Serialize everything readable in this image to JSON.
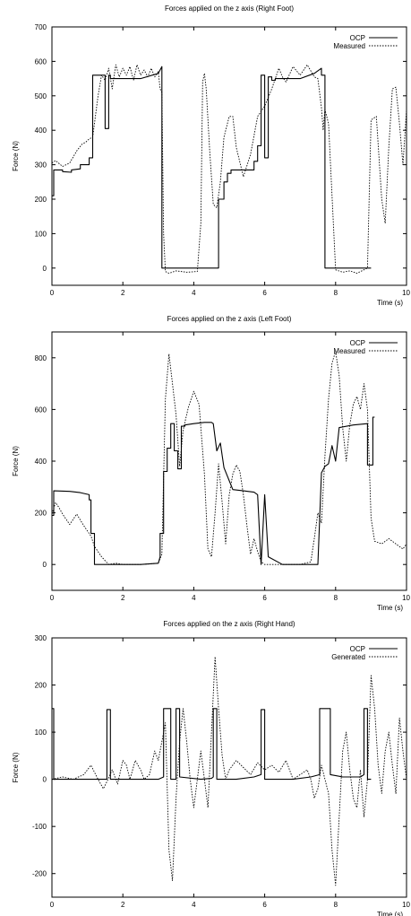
{
  "chart_data": [
    {
      "type": "line",
      "title": "Forces applied on the z axis (Right Foot)",
      "xlabel": "Time (s)",
      "ylabel": "Force (N)",
      "xlim": [
        0,
        10
      ],
      "ylim": [
        -50,
        700
      ],
      "xticks": [
        0,
        2,
        4,
        6,
        8,
        10
      ],
      "yticks": [
        0,
        100,
        200,
        300,
        400,
        500,
        600,
        700
      ],
      "legend_position": "top-right",
      "series": [
        {
          "name": "OCP",
          "style": "solid",
          "x": [
            0.0,
            0.05,
            0.05,
            0.3,
            0.3,
            0.55,
            0.55,
            0.8,
            0.8,
            1.05,
            1.05,
            1.15,
            1.15,
            1.5,
            1.5,
            1.6,
            1.6,
            1.65,
            1.65,
            2.5,
            3.0,
            3.1,
            3.1,
            3.25,
            3.25,
            3.5,
            3.7,
            4.7,
            4.7,
            4.85,
            4.85,
            4.95,
            4.95,
            5.05,
            5.05,
            5.7,
            5.7,
            5.8,
            5.8,
            5.9,
            5.9,
            6.0,
            6.0,
            6.1,
            6.1,
            6.2,
            6.2,
            6.3,
            6.3,
            7.0,
            7.4,
            7.6,
            7.6,
            7.7,
            7.7,
            8.0,
            8.5,
            8.7,
            8.7,
            9.0
          ],
          "y": [
            210,
            210,
            285,
            285,
            280,
            278,
            285,
            288,
            300,
            300,
            320,
            320,
            560,
            560,
            405,
            405,
            560,
            560,
            550,
            550,
            565,
            585,
            0,
            0,
            0,
            0,
            0,
            0,
            200,
            200,
            250,
            250,
            275,
            275,
            285,
            285,
            310,
            310,
            355,
            355,
            560,
            560,
            320,
            320,
            555,
            555,
            545,
            545,
            550,
            550,
            565,
            580,
            560,
            560,
            0,
            0,
            0,
            0,
            0,
            0
          ]
        },
        {
          "name": "Measured",
          "style": "dotted",
          "x": [
            0.0,
            0.1,
            0.3,
            0.5,
            0.7,
            0.85,
            0.95,
            1.05,
            1.15,
            1.3,
            1.4,
            1.5,
            1.6,
            1.7,
            1.8,
            1.9,
            2.0,
            2.1,
            2.2,
            2.3,
            2.4,
            2.5,
            2.6,
            2.7,
            2.8,
            2.9,
            3.0,
            3.05,
            3.1,
            3.15,
            3.2,
            3.3,
            3.5,
            3.8,
            4.1,
            4.2,
            4.25,
            4.3,
            4.35,
            4.45,
            4.55,
            4.65,
            4.75,
            4.85,
            5.0,
            5.1,
            5.2,
            5.4,
            5.6,
            5.8,
            6.0,
            6.2,
            6.4,
            6.5,
            6.6,
            6.8,
            7.0,
            7.2,
            7.4,
            7.5,
            7.6,
            7.65,
            7.7,
            7.8,
            8.0,
            8.2,
            8.4,
            8.6,
            8.8,
            8.9,
            9.0,
            9.15,
            9.3,
            9.4,
            9.5,
            9.6,
            9.7,
            9.8,
            9.9,
            10.0
          ],
          "y": [
            305,
            312,
            295,
            305,
            340,
            360,
            365,
            375,
            380,
            500,
            560,
            545,
            580,
            520,
            590,
            555,
            580,
            560,
            585,
            545,
            590,
            560,
            575,
            555,
            580,
            555,
            570,
            520,
            510,
            100,
            -10,
            -15,
            -8,
            -12,
            -10,
            130,
            540,
            565,
            520,
            340,
            185,
            175,
            250,
            380,
            440,
            440,
            350,
            265,
            330,
            440,
            470,
            520,
            580,
            555,
            540,
            585,
            560,
            590,
            555,
            550,
            465,
            400,
            460,
            420,
            -5,
            -12,
            -8,
            -15,
            -5,
            0,
            430,
            440,
            200,
            130,
            350,
            520,
            525,
            420,
            300,
            460
          ]
        }
      ]
    },
    {
      "type": "line",
      "title": "Forces applied on the z axis (Left Foot)",
      "xlabel": "Time (s)",
      "ylabel": "Force (N)",
      "xlim": [
        0,
        10
      ],
      "ylim": [
        -100,
        900
      ],
      "xticks": [
        0,
        2,
        4,
        6,
        8,
        10
      ],
      "yticks": [
        0,
        200,
        400,
        600,
        800
      ],
      "legend_position": "top-right",
      "series": [
        {
          "name": "OCP",
          "style": "solid",
          "x": [
            0.0,
            0.05,
            0.05,
            0.5,
            0.8,
            1.05,
            1.05,
            1.1,
            1.1,
            1.2,
            1.2,
            1.5,
            1.8,
            2.5,
            3.0,
            3.05,
            3.05,
            3.15,
            3.15,
            3.25,
            3.25,
            3.35,
            3.35,
            3.45,
            3.45,
            3.55,
            3.55,
            3.65,
            3.65,
            3.75,
            3.75,
            4.0,
            4.3,
            4.5,
            4.55,
            4.55,
            4.65,
            4.65,
            4.75,
            4.75,
            4.85,
            4.85,
            5.1,
            5.1,
            5.4,
            5.7,
            5.8,
            5.8,
            5.9,
            5.9,
            6.0,
            6.0,
            6.1,
            6.1,
            6.5,
            7.0,
            7.5,
            7.5,
            7.6,
            7.6,
            7.7,
            7.7,
            7.8,
            7.8,
            7.9,
            7.9,
            8.0,
            8.0,
            8.1,
            8.1,
            8.5,
            8.9,
            8.9,
            9.05,
            9.05,
            9.1
          ],
          "y": [
            190,
            190,
            285,
            283,
            278,
            270,
            250,
            250,
            120,
            120,
            0,
            0,
            0,
            0,
            5,
            30,
            120,
            120,
            360,
            360,
            450,
            450,
            545,
            545,
            440,
            440,
            370,
            370,
            535,
            535,
            540,
            545,
            550,
            550,
            545,
            545,
            440,
            440,
            470,
            470,
            375,
            375,
            290,
            290,
            285,
            280,
            270,
            270,
            0,
            0,
            270,
            270,
            30,
            30,
            0,
            0,
            0,
            0,
            355,
            355,
            380,
            380,
            390,
            390,
            460,
            460,
            400,
            400,
            530,
            530,
            540,
            545,
            385,
            385,
            570,
            570
          ]
        },
        {
          "name": "Measured",
          "style": "dotted",
          "x": [
            0.0,
            0.1,
            0.2,
            0.3,
            0.5,
            0.7,
            0.9,
            1.1,
            1.2,
            1.4,
            1.6,
            1.8,
            2.0,
            2.5,
            3.0,
            3.1,
            3.2,
            3.3,
            3.4,
            3.5,
            3.6,
            3.7,
            3.85,
            4.0,
            4.15,
            4.3,
            4.4,
            4.5,
            4.6,
            4.7,
            4.8,
            4.9,
            5.0,
            5.1,
            5.2,
            5.3,
            5.4,
            5.5,
            5.6,
            5.7,
            5.8,
            5.9,
            6.0,
            6.2,
            6.5,
            7.0,
            7.3,
            7.4,
            7.5,
            7.6,
            7.7,
            7.8,
            7.9,
            8.0,
            8.1,
            8.2,
            8.3,
            8.4,
            8.5,
            8.6,
            8.7,
            8.8,
            8.9,
            9.0,
            9.1,
            9.3,
            9.5,
            9.7,
            9.9,
            10.0
          ],
          "y": [
            195,
            240,
            220,
            195,
            155,
            195,
            150,
            110,
            70,
            30,
            0,
            5,
            0,
            0,
            5,
            40,
            640,
            815,
            700,
            580,
            380,
            520,
            610,
            670,
            620,
            350,
            60,
            30,
            200,
            390,
            240,
            80,
            270,
            350,
            385,
            360,
            270,
            150,
            40,
            100,
            50,
            10,
            0,
            0,
            0,
            0,
            10,
            100,
            200,
            160,
            420,
            640,
            780,
            825,
            730,
            530,
            400,
            540,
            620,
            650,
            600,
            700,
            600,
            180,
            90,
            80,
            100,
            80,
            60,
            80
          ]
        }
      ]
    },
    {
      "type": "line",
      "title": "Forces applied on the z axis (Right Hand)",
      "xlabel": "Time (s)",
      "ylabel": "Force (N)",
      "xlim": [
        0,
        10
      ],
      "ylim": [
        -250,
        300
      ],
      "xticks": [
        0,
        2,
        4,
        6,
        8,
        10
      ],
      "yticks": [
        -200,
        -100,
        0,
        100,
        200,
        300
      ],
      "legend_position": "top-right",
      "series": [
        {
          "name": "OCP",
          "style": "solid",
          "x": [
            0.0,
            0.05,
            0.05,
            1.0,
            1.5,
            1.55,
            1.55,
            1.65,
            1.65,
            2.5,
            3.0,
            3.15,
            3.15,
            3.35,
            3.35,
            3.5,
            3.5,
            3.6,
            3.6,
            4.2,
            4.5,
            4.55,
            4.55,
            4.65,
            4.65,
            5.2,
            5.7,
            5.9,
            5.9,
            6.0,
            6.0,
            6.8,
            7.3,
            7.55,
            7.55,
            7.85,
            7.85,
            8.2,
            8.7,
            8.8,
            8.8,
            8.9,
            8.9,
            9.0
          ],
          "y": [
            150,
            150,
            0,
            0,
            0,
            0,
            148,
            148,
            0,
            0,
            0,
            5,
            150,
            150,
            0,
            0,
            150,
            150,
            5,
            0,
            2,
            5,
            150,
            150,
            0,
            0,
            5,
            10,
            148,
            148,
            0,
            0,
            5,
            10,
            150,
            150,
            10,
            5,
            5,
            10,
            150,
            150,
            0,
            0
          ]
        },
        {
          "name": "Generated",
          "style": "dotted",
          "x": [
            0.0,
            0.3,
            0.6,
            0.9,
            1.1,
            1.2,
            1.3,
            1.45,
            1.55,
            1.7,
            1.85,
            2.0,
            2.1,
            2.2,
            2.35,
            2.5,
            2.6,
            2.75,
            2.9,
            3.0,
            3.1,
            3.2,
            3.3,
            3.4,
            3.5,
            3.6,
            3.7,
            3.8,
            3.9,
            4.0,
            4.1,
            4.2,
            4.3,
            4.4,
            4.5,
            4.6,
            4.7,
            4.8,
            4.9,
            5.0,
            5.2,
            5.4,
            5.6,
            5.8,
            6.0,
            6.2,
            6.4,
            6.6,
            6.8,
            7.0,
            7.2,
            7.3,
            7.4,
            7.5,
            7.6,
            7.7,
            7.8,
            7.9,
            8.0,
            8.1,
            8.2,
            8.3,
            8.4,
            8.5,
            8.6,
            8.7,
            8.8,
            8.9,
            9.0,
            9.1,
            9.2,
            9.3,
            9.4,
            9.5,
            9.6,
            9.7,
            9.8,
            9.9,
            10.0
          ],
          "y": [
            0,
            5,
            0,
            10,
            30,
            15,
            0,
            -20,
            -5,
            20,
            -10,
            40,
            30,
            0,
            40,
            20,
            0,
            10,
            60,
            40,
            80,
            120,
            -150,
            -215,
            -40,
            80,
            150,
            80,
            0,
            -60,
            0,
            60,
            0,
            -60,
            100,
            260,
            150,
            50,
            0,
            20,
            40,
            25,
            10,
            35,
            20,
            30,
            15,
            40,
            0,
            10,
            20,
            0,
            -40,
            -20,
            30,
            0,
            -30,
            -150,
            -225,
            -80,
            60,
            100,
            20,
            -40,
            -60,
            20,
            -80,
            0,
            220,
            150,
            30,
            -30,
            60,
            100,
            30,
            -30,
            130,
            60,
            0
          ]
        }
      ]
    }
  ]
}
